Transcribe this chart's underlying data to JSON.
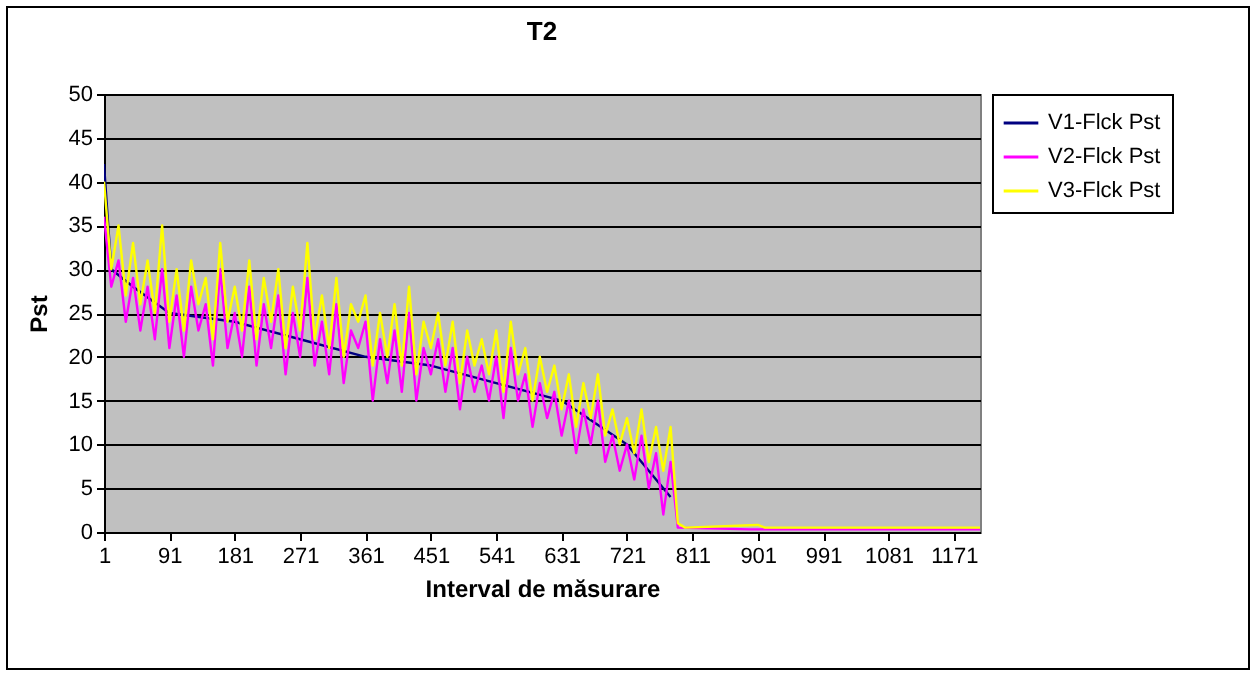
{
  "chart_data": {
    "type": "line",
    "title": "T2",
    "xlabel": "Interval de măsurare",
    "ylabel": "Pst",
    "xlim": [
      1,
      1207
    ],
    "xticks": [
      1,
      91,
      181,
      271,
      361,
      451,
      541,
      631,
      721,
      811,
      901,
      991,
      1081,
      1171
    ],
    "ylim": [
      0,
      50
    ],
    "yticks": [
      0,
      5,
      10,
      15,
      20,
      25,
      30,
      35,
      40,
      45,
      50
    ],
    "grid": "y",
    "legend": "right",
    "line_style": "solid",
    "series": [
      {
        "name": "V1-Flck Pst",
        "color": "#000080",
        "x": [
          1,
          11,
          41,
          91,
          181,
          271,
          361,
          451,
          541,
          631,
          721,
          771,
          781
        ],
        "values": [
          42,
          30,
          28,
          25,
          24,
          22,
          20,
          19,
          17,
          15,
          10,
          5,
          4
        ]
      },
      {
        "name": "V2-Flck Pst",
        "color": "#ff00ff",
        "x": [
          1,
          11,
          21,
          31,
          41,
          51,
          61,
          71,
          81,
          91,
          101,
          111,
          121,
          131,
          141,
          151,
          161,
          171,
          181,
          191,
          201,
          211,
          221,
          231,
          241,
          251,
          261,
          271,
          281,
          291,
          301,
          311,
          321,
          331,
          341,
          351,
          361,
          371,
          381,
          391,
          401,
          411,
          421,
          431,
          441,
          451,
          461,
          471,
          481,
          491,
          501,
          511,
          521,
          531,
          541,
          551,
          561,
          571,
          581,
          591,
          601,
          611,
          621,
          631,
          641,
          651,
          661,
          671,
          681,
          691,
          701,
          711,
          721,
          731,
          741,
          751,
          761,
          771,
          781,
          791,
          891,
          901,
          1207
        ],
        "values": [
          36,
          28,
          31,
          24,
          29,
          23,
          28,
          22,
          30,
          21,
          27,
          20,
          28,
          23,
          26,
          19,
          30,
          21,
          25,
          20,
          28,
          19,
          26,
          21,
          27,
          18,
          25,
          20,
          29,
          19,
          24,
          18,
          26,
          17,
          23,
          21,
          24,
          15,
          22,
          17,
          23,
          16,
          25,
          15,
          21,
          18,
          22,
          16,
          21,
          14,
          20,
          16,
          19,
          15,
          20,
          13,
          21,
          15,
          18,
          12,
          17,
          13,
          16,
          11,
          15,
          9,
          14,
          10,
          15,
          8,
          11,
          7,
          10,
          6,
          11,
          5,
          9,
          2,
          8,
          0.5,
          0.3,
          0.3,
          0.3
        ]
      },
      {
        "name": "V3-Flck Pst",
        "color": "#ffff00",
        "x": [
          1,
          11,
          21,
          31,
          41,
          51,
          61,
          71,
          81,
          91,
          101,
          111,
          121,
          131,
          141,
          151,
          161,
          171,
          181,
          191,
          201,
          211,
          221,
          231,
          241,
          251,
          261,
          271,
          281,
          291,
          301,
          311,
          321,
          331,
          341,
          351,
          361,
          371,
          381,
          391,
          401,
          411,
          421,
          431,
          441,
          451,
          461,
          471,
          481,
          491,
          501,
          511,
          521,
          531,
          541,
          551,
          561,
          571,
          581,
          591,
          601,
          611,
          621,
          631,
          641,
          651,
          661,
          671,
          681,
          691,
          701,
          711,
          721,
          731,
          741,
          751,
          761,
          771,
          781,
          791,
          801,
          901,
          911,
          1207
        ],
        "values": [
          40,
          30,
          35,
          27,
          33,
          26,
          31,
          25,
          35,
          24,
          30,
          23,
          31,
          26,
          29,
          22,
          33,
          24,
          28,
          23,
          31,
          22,
          29,
          24,
          30,
          21,
          28,
          23,
          33,
          22,
          27,
          21,
          29,
          20,
          26,
          24,
          27,
          19,
          25,
          20,
          26,
          19,
          28,
          18,
          24,
          21,
          25,
          19,
          24,
          17,
          23,
          19,
          22,
          18,
          23,
          16,
          24,
          18,
          21,
          15,
          20,
          16,
          19,
          14,
          18,
          12,
          17,
          13,
          18,
          11,
          14,
          10,
          13,
          9,
          14,
          8,
          12,
          7,
          12,
          1,
          0.5,
          0.8,
          0.5,
          0.5
        ]
      }
    ]
  }
}
